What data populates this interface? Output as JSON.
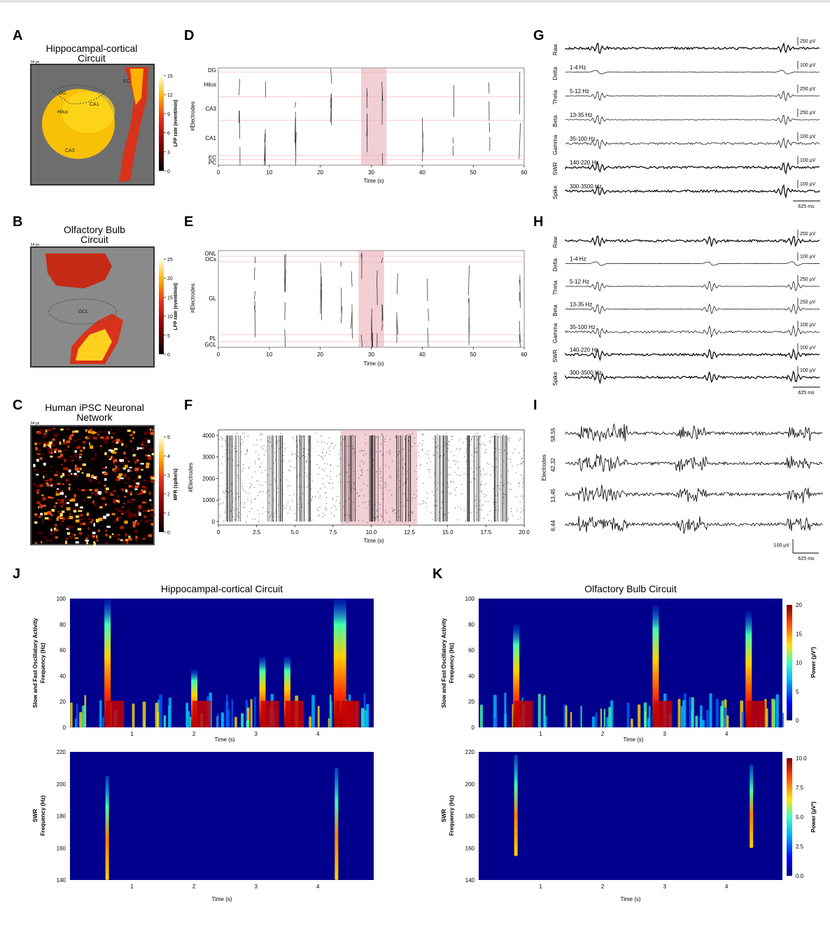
{
  "panels": {
    "A": {
      "letter": "A",
      "title": [
        "Hippocampal-cortical",
        "Circuit"
      ],
      "scale": "64 px",
      "cbar_label": "LFP rate (event/min)",
      "cbar_ticks": [
        "15",
        "12",
        "9",
        "6",
        "3",
        "0"
      ],
      "regions": [
        "DG",
        "Hilus",
        "CA1",
        "CA3",
        "EC"
      ]
    },
    "B": {
      "letter": "B",
      "title": [
        "Olfactory Bulb",
        "Circuit"
      ],
      "scale": "64 px",
      "cbar_label": "LFP rate (event/min)",
      "cbar_ticks": [
        "25",
        "20",
        "15",
        "10",
        "5",
        "0"
      ],
      "regions": [
        "GCL"
      ]
    },
    "C": {
      "letter": "C",
      "title": [
        "Human iPSC Neuronal",
        "Network"
      ],
      "scale": "64 px",
      "cbar_label": "MFR (spike/s)",
      "cbar_ticks": [
        "5",
        "4",
        "3",
        "2",
        "1",
        "0"
      ]
    },
    "D": {
      "letter": "D",
      "ylabel": "#Electrodes",
      "xlabel": "Time (s)",
      "layers": [
        "DG",
        "Hilus",
        "CA3",
        "CA1",
        "EC",
        "PC"
      ],
      "xticks": [
        "0",
        "10",
        "20",
        "30",
        "40",
        "50",
        "60"
      ]
    },
    "E": {
      "letter": "E",
      "ylabel": "#Electrodes",
      "xlabel": "Time (s)",
      "layers": [
        "ONL",
        "OCx",
        "GL",
        "PL",
        "GCL"
      ],
      "xticks": [
        "0",
        "10",
        "20",
        "30",
        "40",
        "50",
        "60"
      ]
    },
    "F": {
      "letter": "F",
      "ylabel": "#Electrodes",
      "xlabel": "Time (s)",
      "yticks": [
        "4000",
        "3000",
        "2000",
        "1000",
        "0"
      ],
      "xticks": [
        "0",
        "2.5",
        "5.0",
        "7.5",
        "10.0",
        "12.5",
        "15.0",
        "17.5",
        "20.0"
      ]
    },
    "G": {
      "letter": "G",
      "bands": [
        {
          "row": "Raw",
          "band": "",
          "scale": "250 µV"
        },
        {
          "row": "Delta",
          "band": "1-4 Hz",
          "scale": "100 µV"
        },
        {
          "row": "Theta",
          "band": "5-12 Hz",
          "scale": "250 µV"
        },
        {
          "row": "Beta",
          "band": "13-35 Hz",
          "scale": "250 µV"
        },
        {
          "row": "Gamma",
          "band": "35-100 Hz",
          "scale": "100 µV"
        },
        {
          "row": "SWR",
          "band": "140-220 Hz",
          "scale": "100 µV"
        },
        {
          "row": "Spike",
          "band": "300-3500 Hz",
          "scale": "100 µV"
        }
      ],
      "timebar": "625 ms"
    },
    "H": {
      "letter": "H",
      "bands": [
        {
          "row": "Raw",
          "band": "",
          "scale": "250 µV"
        },
        {
          "row": "Delta",
          "band": "1-4 Hz",
          "scale": "100 µV"
        },
        {
          "row": "Theta",
          "band": "5-12 Hz",
          "scale": "250 µV"
        },
        {
          "row": "Beta",
          "band": "13-35 Hz",
          "scale": "250 µV"
        },
        {
          "row": "Gamma",
          "band": "35-100 Hz",
          "scale": "100 µV"
        },
        {
          "row": "SWR",
          "band": "140-220 Hz",
          "scale": "100 µV"
        },
        {
          "row": "Spike",
          "band": "300-3500 Hz",
          "scale": "100 µV"
        }
      ],
      "timebar": "625 ms"
    },
    "I": {
      "letter": "I",
      "ylabel": "Electrodes",
      "channels": [
        "58,55",
        "42,32",
        "13,45",
        "6,44"
      ],
      "vbar": "100 µV",
      "timebar": "625 ms"
    },
    "J": {
      "letter": "J",
      "title": "Hippocampal-cortical Circuit",
      "top_ylabel": [
        "Slow and Fast Oscillatory Activity",
        "Frequency (Hz)"
      ],
      "top_yticks": [
        "100",
        "80",
        "60",
        "40",
        "20",
        "0"
      ],
      "bottom_ylabel": [
        "SWR",
        "Frequency (Hz)"
      ],
      "bottom_yticks": [
        "220",
        "200",
        "180",
        "160",
        "140"
      ],
      "xticks": [
        "1",
        "2",
        "3",
        "4"
      ],
      "xlabel": "Time (s)"
    },
    "K": {
      "letter": "K",
      "title": "Olfactory Bulb Circuit",
      "top_ylabel": [
        "Slow and Fast Oscillatory Activity",
        "Frequency (Hz)"
      ],
      "top_yticks": [
        "100",
        "80",
        "60",
        "40",
        "20",
        "0"
      ],
      "bottom_ylabel": [
        "SWR",
        "Frequency (Hz)"
      ],
      "bottom_yticks": [
        "220",
        "200",
        "180",
        "160",
        "140"
      ],
      "xticks": [
        "1",
        "2",
        "3",
        "4"
      ],
      "xlabel": "Time (s)",
      "cbar_top_label": "Power (µV²)",
      "cbar_top_ticks": [
        "20",
        "15",
        "10",
        "5",
        "0"
      ],
      "cbar_bottom_label": "Power (µV²)",
      "cbar_bottom_ticks": [
        "10.0",
        "7.5",
        "5.0",
        "2.5",
        "0.0"
      ]
    }
  },
  "chart_data": [
    {
      "id": "D",
      "type": "scatter",
      "title": "",
      "xlabel": "Time (s)",
      "ylabel": "#Electrodes",
      "xlim": [
        0,
        60
      ],
      "categories": [
        "DG",
        "Hilus",
        "CA3",
        "CA1",
        "EC",
        "PC"
      ],
      "event_times": [
        4,
        9,
        15,
        22,
        29,
        32,
        40,
        46,
        53,
        59
      ],
      "highlight": [
        28,
        33
      ]
    },
    {
      "id": "E",
      "type": "scatter",
      "title": "",
      "xlabel": "Time (s)",
      "ylabel": "#Electrodes",
      "xlim": [
        0,
        60
      ],
      "categories": [
        "ONL",
        "OCx",
        "GL",
        "PL",
        "GCL"
      ],
      "event_times": [
        7,
        13,
        20,
        24,
        26,
        28,
        30,
        31,
        32,
        35,
        41,
        49,
        59
      ],
      "highlight": [
        27.5,
        32.5
      ]
    },
    {
      "id": "F",
      "type": "scatter",
      "title": "",
      "xlabel": "Time (s)",
      "ylabel": "#Electrodes",
      "xlim": [
        0,
        20
      ],
      "ylim": [
        0,
        4096
      ],
      "bursts": [
        1.0,
        3.7,
        5.6,
        8.5,
        10.3,
        12.1,
        14.6,
        16.6,
        18.5
      ],
      "highlight": [
        8.0,
        13.0
      ]
    },
    {
      "id": "G",
      "type": "line",
      "xlabel": "",
      "ylabel": "",
      "traces": [
        "Raw",
        "Delta",
        "Theta",
        "Beta",
        "Gamma",
        "SWR",
        "Spike"
      ],
      "event_fraction": [
        0.13,
        0.86
      ]
    },
    {
      "id": "H",
      "type": "line",
      "xlabel": "",
      "ylabel": "",
      "traces": [
        "Raw",
        "Delta",
        "Theta",
        "Beta",
        "Gamma",
        "SWR",
        "Spike"
      ],
      "event_fraction": [
        0.13,
        0.57,
        0.9
      ]
    },
    {
      "id": "I",
      "type": "line",
      "xlabel": "",
      "ylabel": "Electrodes",
      "traces": [
        "58,55",
        "42,32",
        "13,45",
        "6,44"
      ],
      "burst_fraction": [
        [
          0.05,
          0.24
        ],
        [
          0.43,
          0.55
        ],
        [
          0.86,
          0.95
        ]
      ]
    },
    {
      "id": "J",
      "type": "heatmap",
      "title": "Hippocampal-cortical Circuit",
      "xlabel": "Time (s)",
      "xlim": [
        0,
        4.9
      ],
      "ylim_top": [
        0,
        100
      ],
      "ylim_bottom": [
        140,
        220
      ],
      "top_events": [
        {
          "t": 0.6,
          "fmax": 100
        },
        {
          "t": 4.3,
          "fmax": 100
        },
        {
          "t": 4.4,
          "fmax": 100
        },
        {
          "t": 3.5,
          "fmax": 55
        },
        {
          "t": 3.1,
          "fmax": 55
        },
        {
          "t": 2.0,
          "fmax": 45
        }
      ],
      "bottom_events": [
        {
          "t": 0.6,
          "fmin": 140,
          "fmax": 205
        },
        {
          "t": 4.3,
          "fmin": 140,
          "fmax": 210
        }
      ]
    },
    {
      "id": "K",
      "type": "heatmap",
      "title": "Olfactory Bulb Circuit",
      "xlabel": "Time (s)",
      "xlim": [
        0,
        4.9
      ],
      "ylim_top": [
        0,
        100
      ],
      "ylim_bottom": [
        140,
        220
      ],
      "top_events": [
        {
          "t": 0.6,
          "fmax": 80
        },
        {
          "t": 2.85,
          "fmax": 95
        },
        {
          "t": 4.35,
          "fmax": 90
        }
      ],
      "bottom_events": [
        {
          "t": 0.6,
          "fmin": 155,
          "fmax": 218
        },
        {
          "t": 4.4,
          "fmin": 160,
          "fmax": 212
        }
      ],
      "power_range_top": [
        0,
        20
      ],
      "power_range_bottom": [
        0,
        10
      ]
    }
  ]
}
